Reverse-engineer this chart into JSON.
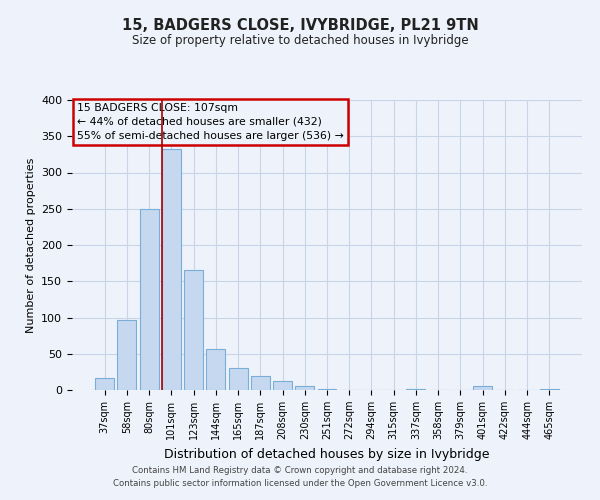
{
  "title": "15, BADGERS CLOSE, IVYBRIDGE, PL21 9TN",
  "subtitle": "Size of property relative to detached houses in Ivybridge",
  "xlabel": "Distribution of detached houses by size in Ivybridge",
  "ylabel": "Number of detached properties",
  "bar_labels": [
    "37sqm",
    "58sqm",
    "80sqm",
    "101sqm",
    "123sqm",
    "144sqm",
    "165sqm",
    "187sqm",
    "208sqm",
    "230sqm",
    "251sqm",
    "272sqm",
    "294sqm",
    "315sqm",
    "337sqm",
    "358sqm",
    "379sqm",
    "401sqm",
    "422sqm",
    "444sqm",
    "465sqm"
  ],
  "bar_heights": [
    17,
    97,
    250,
    333,
    165,
    57,
    30,
    19,
    12,
    5,
    1,
    0,
    0,
    0,
    1,
    0,
    0,
    5,
    0,
    0,
    2
  ],
  "bar_color": "#c5d8f0",
  "bar_edgecolor": "#7aaed6",
  "ylim": [
    0,
    400
  ],
  "yticks": [
    0,
    50,
    100,
    150,
    200,
    250,
    300,
    350,
    400
  ],
  "property_label": "15 BADGERS CLOSE: 107sqm",
  "pct_smaller_label": "← 44% of detached houses are smaller (432)",
  "pct_larger_label": "55% of semi-detached houses are larger (536) →",
  "vline_color": "#aa0000",
  "annotation_box_edgecolor": "#cc0000",
  "grid_color": "#c8d4e8",
  "bg_color": "#eef2fa",
  "footer1": "Contains HM Land Registry data © Crown copyright and database right 2024.",
  "footer2": "Contains public sector information licensed under the Open Government Licence v3.0."
}
